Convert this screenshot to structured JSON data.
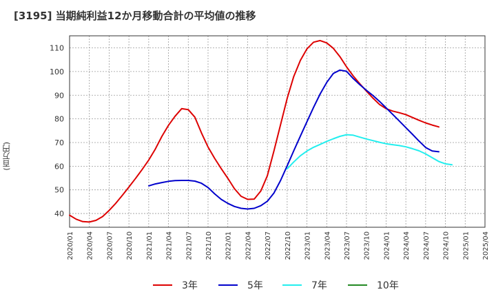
{
  "title": "[3195]  当期純利益12か月移動合計の平均値の推移",
  "unit_label": "(百万円)",
  "chart_data": {
    "type": "line",
    "x_ticks": [
      "2020/01",
      "2020/04",
      "2020/07",
      "2020/10",
      "2021/01",
      "2021/04",
      "2021/07",
      "2021/10",
      "2022/01",
      "2022/04",
      "2022/07",
      "2022/10",
      "2023/01",
      "2023/04",
      "2023/07",
      "2023/10",
      "2024/01",
      "2024/04",
      "2024/07",
      "2024/10",
      "2025/01",
      "2025/04"
    ],
    "y_ticks": [
      40,
      50,
      60,
      70,
      80,
      90,
      100,
      110
    ],
    "ylim": [
      34.2,
      115.1
    ],
    "xlim": [
      "2020/01",
      "2025/04"
    ],
    "grid": true,
    "legend_position": "bottom",
    "colors": {
      "3年": "#dd0000",
      "5年": "#0000cc",
      "7年": "#22eeee",
      "10年": "#228822"
    },
    "series": [
      {
        "name": "3年",
        "color": "#dd0000",
        "points": [
          [
            "2020/01",
            39.3
          ],
          [
            "2020/02",
            37.6
          ],
          [
            "2020/03",
            36.6
          ],
          [
            "2020/04",
            36.4
          ],
          [
            "2020/05",
            37.1
          ],
          [
            "2020/06",
            38.7
          ],
          [
            "2020/07",
            41.3
          ],
          [
            "2020/08",
            44.3
          ],
          [
            "2020/09",
            47.7
          ],
          [
            "2020/10",
            51.2
          ],
          [
            "2020/11",
            54.8
          ],
          [
            "2020/12",
            58.6
          ],
          [
            "2021/01",
            62.6
          ],
          [
            "2021/02",
            67.2
          ],
          [
            "2021/03",
            72.6
          ],
          [
            "2021/04",
            77.3
          ],
          [
            "2021/05",
            81.1
          ],
          [
            "2021/06",
            84.3
          ],
          [
            "2021/07",
            83.9
          ],
          [
            "2021/08",
            80.7
          ],
          [
            "2021/09",
            74.1
          ],
          [
            "2021/10",
            68.1
          ],
          [
            "2021/11",
            63.3
          ],
          [
            "2021/12",
            59.0
          ],
          [
            "2022/01",
            54.9
          ],
          [
            "2022/02",
            50.5
          ],
          [
            "2022/03",
            47.3
          ],
          [
            "2022/04",
            46.0
          ],
          [
            "2022/05",
            46.1
          ],
          [
            "2022/06",
            49.5
          ],
          [
            "2022/07",
            56.0
          ],
          [
            "2022/08",
            66.5
          ],
          [
            "2022/09",
            77.6
          ],
          [
            "2022/10",
            88.7
          ],
          [
            "2022/11",
            97.9
          ],
          [
            "2022/12",
            104.7
          ],
          [
            "2023/01",
            109.6
          ],
          [
            "2023/02",
            112.4
          ],
          [
            "2023/03",
            113.1
          ],
          [
            "2023/04",
            112.1
          ],
          [
            "2023/05",
            109.8
          ],
          [
            "2023/06",
            106.3
          ],
          [
            "2023/07",
            102.0
          ],
          [
            "2023/08",
            98.2
          ],
          [
            "2023/09",
            94.9
          ],
          [
            "2023/10",
            91.8
          ],
          [
            "2023/11",
            88.8
          ],
          [
            "2023/12",
            86.1
          ],
          [
            "2024/01",
            84.3
          ],
          [
            "2024/02",
            83.3
          ],
          [
            "2024/03",
            82.6
          ],
          [
            "2024/04",
            81.8
          ],
          [
            "2024/05",
            80.6
          ],
          [
            "2024/06",
            79.4
          ],
          [
            "2024/07",
            78.3
          ],
          [
            "2024/08",
            77.4
          ],
          [
            "2024/09",
            76.6
          ]
        ]
      },
      {
        "name": "5年",
        "color": "#0000cc",
        "points": [
          [
            "2021/01",
            51.7
          ],
          [
            "2021/02",
            52.5
          ],
          [
            "2021/03",
            53.1
          ],
          [
            "2021/04",
            53.6
          ],
          [
            "2021/05",
            53.9
          ],
          [
            "2021/06",
            54.0
          ],
          [
            "2021/07",
            54.0
          ],
          [
            "2021/08",
            53.7
          ],
          [
            "2021/09",
            52.8
          ],
          [
            "2021/10",
            51.0
          ],
          [
            "2021/11",
            48.3
          ],
          [
            "2021/12",
            46.0
          ],
          [
            "2022/01",
            44.3
          ],
          [
            "2022/02",
            43.0
          ],
          [
            "2022/03",
            42.2
          ],
          [
            "2022/04",
            41.9
          ],
          [
            "2022/05",
            42.2
          ],
          [
            "2022/06",
            43.3
          ],
          [
            "2022/07",
            45.2
          ],
          [
            "2022/08",
            48.7
          ],
          [
            "2022/09",
            54.0
          ],
          [
            "2022/10",
            60.2
          ],
          [
            "2022/11",
            66.5
          ],
          [
            "2022/12",
            72.7
          ],
          [
            "2023/01",
            78.8
          ],
          [
            "2023/02",
            84.8
          ],
          [
            "2023/03",
            90.5
          ],
          [
            "2023/04",
            95.4
          ],
          [
            "2023/05",
            99.2
          ],
          [
            "2023/06",
            100.6
          ],
          [
            "2023/07",
            100.1
          ],
          [
            "2023/08",
            97.1
          ],
          [
            "2023/09",
            94.5
          ],
          [
            "2023/10",
            92.1
          ],
          [
            "2023/11",
            89.9
          ],
          [
            "2023/12",
            87.4
          ],
          [
            "2024/01",
            84.7
          ],
          [
            "2024/02",
            81.9
          ],
          [
            "2024/03",
            79.1
          ],
          [
            "2024/04",
            76.3
          ],
          [
            "2024/05",
            73.5
          ],
          [
            "2024/06",
            70.6
          ],
          [
            "2024/07",
            67.9
          ],
          [
            "2024/08",
            66.4
          ],
          [
            "2024/09",
            66.1
          ]
        ]
      },
      {
        "name": "7年",
        "color": "#22eeee",
        "points": [
          [
            "2022/10",
            58.9
          ],
          [
            "2022/11",
            61.8
          ],
          [
            "2022/12",
            64.4
          ],
          [
            "2023/01",
            66.4
          ],
          [
            "2023/02",
            68.0
          ],
          [
            "2023/03",
            69.2
          ],
          [
            "2023/04",
            70.5
          ],
          [
            "2023/05",
            71.6
          ],
          [
            "2023/06",
            72.6
          ],
          [
            "2023/07",
            73.3
          ],
          [
            "2023/08",
            73.1
          ],
          [
            "2023/09",
            72.3
          ],
          [
            "2023/10",
            71.5
          ],
          [
            "2023/11",
            70.8
          ],
          [
            "2023/12",
            70.1
          ],
          [
            "2024/01",
            69.5
          ],
          [
            "2024/02",
            69.1
          ],
          [
            "2024/03",
            68.7
          ],
          [
            "2024/04",
            68.2
          ],
          [
            "2024/05",
            67.4
          ],
          [
            "2024/06",
            66.5
          ],
          [
            "2024/07",
            65.2
          ],
          [
            "2024/08",
            63.6
          ],
          [
            "2024/09",
            62.0
          ],
          [
            "2024/10",
            61.0
          ],
          [
            "2024/11",
            60.6
          ]
        ]
      },
      {
        "name": "10年",
        "color": "#228822",
        "points": []
      }
    ]
  }
}
